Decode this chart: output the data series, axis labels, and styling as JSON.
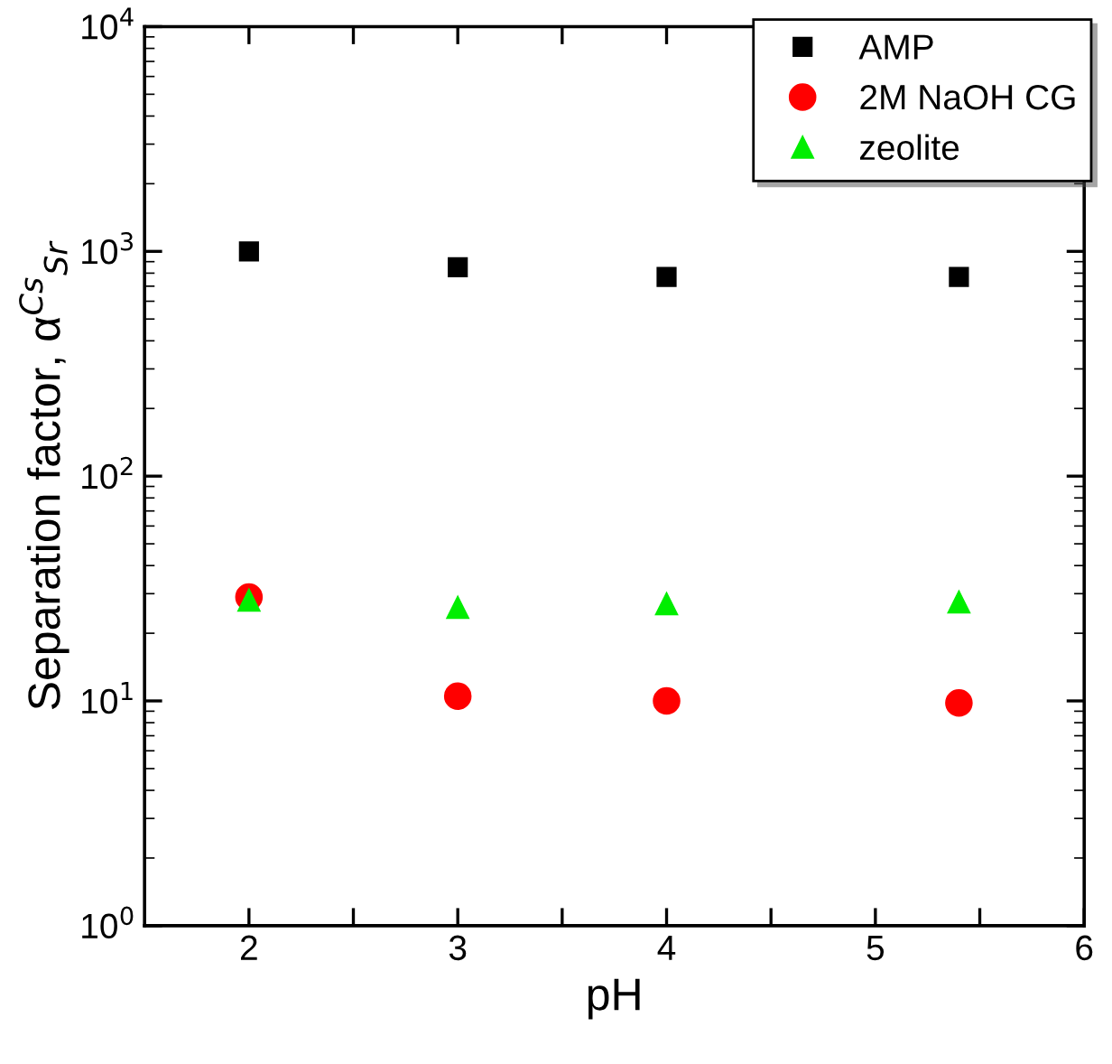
{
  "chart_data": {
    "type": "scatter",
    "xlabel": "pH",
    "ylabel": "Separation factor, α$^{Cs}$$_{Sr}$",
    "x": [
      2,
      3,
      4,
      5.4
    ],
    "series": [
      {
        "name": "AMP",
        "color": "#000000",
        "marker": "square",
        "values": [
          1000,
          850,
          770,
          770
        ]
      },
      {
        "name": "2M NaOH CG",
        "color": "#ff0000",
        "marker": "circle",
        "values": [
          29,
          10.5,
          10,
          9.8
        ]
      },
      {
        "name": "zeolite",
        "color": "#00ee00",
        "marker": "triangle",
        "values": [
          28,
          26,
          27,
          27.5
        ]
      }
    ],
    "log": "y",
    "xlim": [
      1.5,
      6
    ],
    "ylim": [
      1,
      10000
    ],
    "xticks": [
      2,
      {
        "value": 2.5,
        "label": null
      },
      3,
      {
        "value": 3.5,
        "label": null
      },
      4,
      {
        "value": 4.5,
        "label": null
      },
      5,
      {
        "value": 5.5,
        "label": null
      },
      6
    ],
    "yticks": [
      {
        "value": 1,
        "label": "10$^{0}$"
      },
      {
        "value": 10,
        "label": "10$^{1}$"
      },
      {
        "value": 100,
        "label": "10$^{2}$"
      },
      {
        "value": 1000,
        "label": "10$^{3}$"
      },
      {
        "value": 10000,
        "label": "10$^{4}$"
      }
    ],
    "grid": false,
    "legend": "top right"
  }
}
